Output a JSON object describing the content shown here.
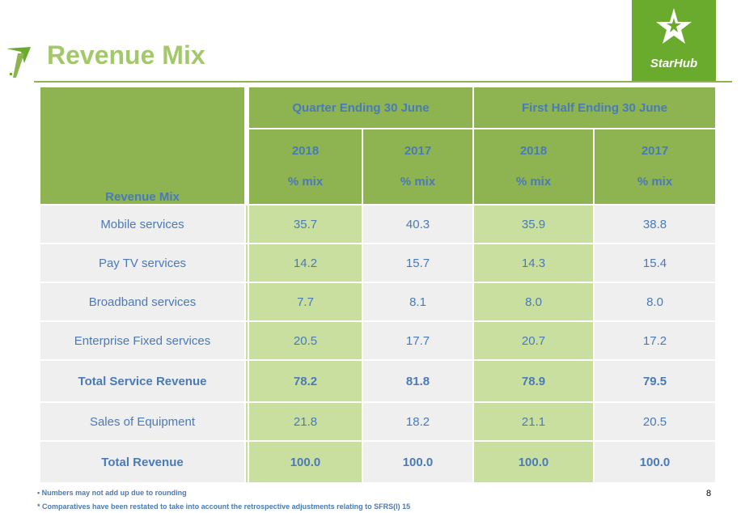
{
  "title": "Revenue Mix",
  "logo": {
    "text": "StarHub"
  },
  "table": {
    "corner_label": "Revenue Mix",
    "groups": [
      "Quarter Ending 30 June",
      "First Half Ending 30 June"
    ],
    "columns": [
      {
        "year": "2018",
        "unit": "% mix"
      },
      {
        "year": "2017",
        "unit": "% mix"
      },
      {
        "year": "2018",
        "unit": "% mix"
      },
      {
        "year": "2017",
        "unit": "% mix"
      }
    ],
    "rows": [
      {
        "label": "Mobile services",
        "values": [
          "35.7",
          "40.3",
          "35.9",
          "38.8"
        ]
      },
      {
        "label": "Pay TV services",
        "values": [
          "14.2",
          "15.7",
          "14.3",
          "15.4"
        ]
      },
      {
        "label": "Broadband services",
        "values": [
          "7.7",
          "8.1",
          "8.0",
          "8.0"
        ]
      },
      {
        "label": "Enterprise Fixed services",
        "values": [
          "20.5",
          "17.7",
          "20.7",
          "17.2"
        ]
      },
      {
        "label": "Total Service Revenue",
        "values": [
          "78.2",
          "81.8",
          "78.9",
          "79.5"
        ]
      },
      {
        "label": "Sales of Equipment",
        "values": [
          "21.8",
          "18.2",
          "21.1",
          "20.5"
        ]
      },
      {
        "label": "Total Revenue",
        "values": [
          "100.0",
          "100.0",
          "100.0",
          "100.0"
        ]
      }
    ]
  },
  "footnotes": [
    "• Numbers may not add up due to rounding",
    "* Comparatives have been restated to take into account the retrospective adjustments relating to SFRS(I) 15"
  ],
  "page_number": "8",
  "colors": {
    "accent_green": "#8db451",
    "light_green": "#c9df9f",
    "title_green": "#a3c86a",
    "text_blue": "#4a7ab7",
    "logo_green": "#6aab2e"
  }
}
